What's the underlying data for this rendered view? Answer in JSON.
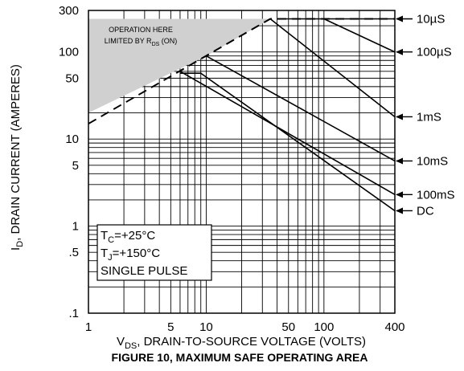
{
  "chart_data": {
    "type": "line",
    "title": "FIGURE 10, MAXIMUM SAFE OPERATING AREA",
    "xlabel": {
      "main": "V",
      "sub": "DS",
      "rest": ", DRAIN-TO-SOURCE VOLTAGE (VOLTS)"
    },
    "ylabel": {
      "main": "I",
      "sub": "D",
      "rest": ", DRAIN CURRENT (AMPERES)"
    },
    "x_scale": "log",
    "y_scale": "log",
    "xlim": [
      1,
      400
    ],
    "ylim": [
      0.1,
      300
    ],
    "x_tick_labels": [
      {
        "value": 1,
        "label": "1"
      },
      {
        "value": 5,
        "label": "5"
      },
      {
        "value": 10,
        "label": "10"
      },
      {
        "value": 50,
        "label": "50"
      },
      {
        "value": 100,
        "label": "100"
      },
      {
        "value": 400,
        "label": "400"
      }
    ],
    "y_tick_labels": [
      {
        "value": 0.1,
        "label": ".1"
      },
      {
        "value": 0.5,
        "label": ".5"
      },
      {
        "value": 1,
        "label": "1"
      },
      {
        "value": 5,
        "label": "5"
      },
      {
        "value": 10,
        "label": "10"
      },
      {
        "value": 50,
        "label": "50"
      },
      {
        "value": 100,
        "label": "100"
      },
      {
        "value": 300,
        "label": "300"
      }
    ],
    "grid": true,
    "series": [
      {
        "name": "10µS",
        "points": [
          [
            40,
            240
          ],
          [
            400,
            240
          ]
        ],
        "label_at": [
          400,
          240
        ]
      },
      {
        "name": "100µS",
        "points": [
          [
            100,
            240
          ],
          [
            400,
            100
          ]
        ],
        "label_at": [
          400,
          100
        ]
      },
      {
        "name": "1mS",
        "points": [
          [
            35,
            240
          ],
          [
            400,
            18
          ]
        ],
        "label_at": [
          400,
          18
        ]
      },
      {
        "name": "10mS",
        "points": [
          [
            10,
            90
          ],
          [
            400,
            5.6
          ]
        ],
        "label_at": [
          400,
          5.6
        ]
      },
      {
        "name": "100mS",
        "points": [
          [
            6,
            60
          ],
          [
            400,
            2.3
          ]
        ],
        "label_at": [
          400,
          2.3
        ]
      },
      {
        "name": "DC",
        "points": [
          [
            6,
            57
          ],
          [
            9,
            57
          ],
          [
            400,
            1.5
          ]
        ],
        "label_at": [
          400,
          1.5
        ]
      }
    ],
    "rds_limit_line": {
      "points": [
        [
          1,
          15
        ],
        [
          35,
          240
        ],
        [
          400,
          240
        ]
      ],
      "style": "dashed"
    },
    "shaded_region": [
      [
        1,
        240
      ],
      [
        35,
        240
      ],
      [
        10,
        90
      ],
      [
        1,
        20
      ]
    ],
    "annotation": {
      "line1": "OPERATION HERE",
      "line2_main": "LIMITED BY R",
      "line2_sub": "DS",
      "line2_rest": " (ON)"
    },
    "conditions": [
      {
        "main": "T",
        "sub": "C",
        "rest": "=+25°C"
      },
      {
        "main": "T",
        "sub": "J",
        "rest": "=+150°C"
      },
      {
        "main": "SINGLE PULSE",
        "sub": "",
        "rest": ""
      }
    ]
  }
}
